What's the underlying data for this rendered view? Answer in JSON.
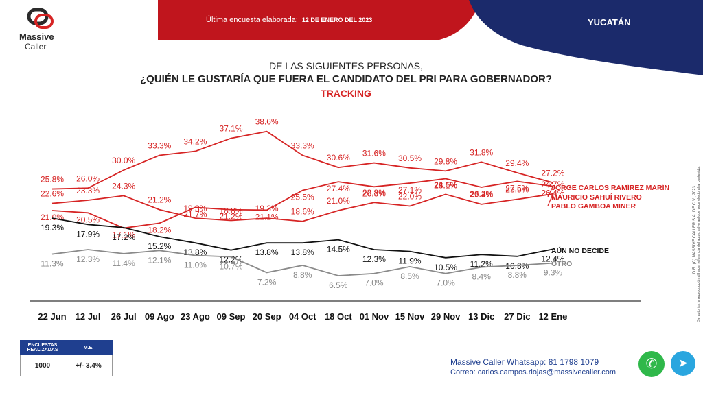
{
  "header": {
    "brand_line1": "Massive",
    "brand_line2": "Caller",
    "survey_label": "Última encuesta elaborada:",
    "survey_date": "12 DE ENERO DEL 2023",
    "region": "YUCATÁN",
    "colors": {
      "red": "#c0151d",
      "navy": "#1b2a6b"
    }
  },
  "title": {
    "line1": "DE LAS SIGUIENTES PERSONAS,",
    "line2": "¿QUIÉN LE GUSTARÍA QUE FUERA EL CANDIDATO DEL PRI PARA GOBERNADOR?",
    "line3": "TRACKING"
  },
  "chart_data": {
    "type": "line",
    "categories": [
      "22 Jun",
      "12 Jul",
      "26 Jul",
      "09 Ago",
      "23 Ago",
      "09 Sep",
      "20 Sep",
      "04 Oct",
      "18 Oct",
      "01 Nov",
      "15 Nov",
      "29 Nov",
      "13 Dic",
      "27 Dic",
      "12 Ene"
    ],
    "series": [
      {
        "name": "JORGE CARLOS RAMÍREZ MARÍN",
        "color": "#d62424",
        "values": [
          25.8,
          26.0,
          30.0,
          33.3,
          34.2,
          37.1,
          38.6,
          33.3,
          30.6,
          31.6,
          30.5,
          29.8,
          31.8,
          29.4,
          27.2
        ],
        "labels": [
          "25.8%",
          "26.0%",
          "30.0%",
          "33.3%",
          "34.2%",
          "37.1%",
          "38.6%",
          "33.3%",
          "30.6%",
          "31.6%",
          "30.5%",
          "29.8%",
          "31.8%",
          "29.4%",
          "27.2%"
        ]
      },
      {
        "name": "MAURICIO SAHUÍ RIVERO",
        "color": "#d62424",
        "values": [
          21.0,
          20.5,
          17.1,
          18.2,
          21.7,
          21.2,
          21.1,
          25.5,
          27.4,
          26.3,
          27.1,
          28.1,
          26.2,
          27.5,
          26.4
        ],
        "labels": [
          "21.0%",
          "20.5%",
          "17.1%",
          "18.2%",
          "21.7%",
          "21.2%",
          "21.1%",
          "25.5%",
          "27.4%",
          "26.3%",
          "27.1%",
          "28.1%",
          "26.2%",
          "27.5%",
          "26.4%"
        ]
      },
      {
        "name": "PABLO GAMBOA MINER",
        "color": "#d62424",
        "values": [
          22.6,
          23.3,
          24.3,
          21.2,
          19.3,
          18.8,
          19.3,
          18.6,
          21.0,
          22.8,
          22.0,
          24.6,
          22.4,
          23.5,
          24.7
        ],
        "labels": [
          "22.6%",
          "23.3%",
          "24.3%",
          "21.2%",
          "19.3%",
          "18.8%",
          "19.3%",
          "18.6%",
          "21.0%",
          "22.8%",
          "22.0%",
          "24.6%",
          "22.4%",
          "23.5%",
          "24.7%"
        ]
      },
      {
        "name": "AÚN NO DECIDE",
        "color": "#111111",
        "values": [
          19.3,
          17.9,
          17.2,
          15.2,
          13.8,
          12.2,
          13.8,
          13.8,
          14.5,
          12.3,
          11.9,
          10.5,
          11.2,
          10.8,
          12.4
        ],
        "labels": [
          "19.3%",
          "17.9%",
          "17.2%",
          "15.2%",
          "13.8%",
          "12.2%",
          "13.8%",
          "13.8%",
          "14.5%",
          "12.3%",
          "11.9%",
          "10.5%",
          "11.2%",
          "10.8%",
          "12.4%"
        ]
      },
      {
        "name": "OTRO",
        "color": "#8a8a8a",
        "values": [
          11.3,
          12.3,
          11.4,
          12.1,
          11.0,
          10.7,
          7.2,
          8.8,
          6.5,
          7.0,
          8.5,
          7.0,
          8.4,
          8.8,
          9.3
        ],
        "labels": [
          "11.3%",
          "12.3%",
          "11.4%",
          "12.1%",
          "11.0%",
          "10.7%",
          "7.2%",
          "8.8%",
          "6.5%",
          "7.0%",
          "8.5%",
          "7.0%",
          "8.4%",
          "8.8%",
          "9.3%"
        ]
      }
    ]
  },
  "side_note": {
    "line1": "D.R. (C) MASSIVE CALLER S.A. DE C.V., 2023",
    "line2": "Se autoriza la reproducción al hacer referencia del autor, salvo aplique veda electoral al contenido."
  },
  "sample": {
    "col1": "ENCUESTAS REALIZADAS",
    "col2": "M.E.",
    "value1": "1000",
    "value2": "+/- 3.4%"
  },
  "contact": {
    "whatsapp": "Massive Caller Whatsapp: 81 1798 1079",
    "email": "Correo: carlos.campos.riojas@massivecaller.com"
  }
}
